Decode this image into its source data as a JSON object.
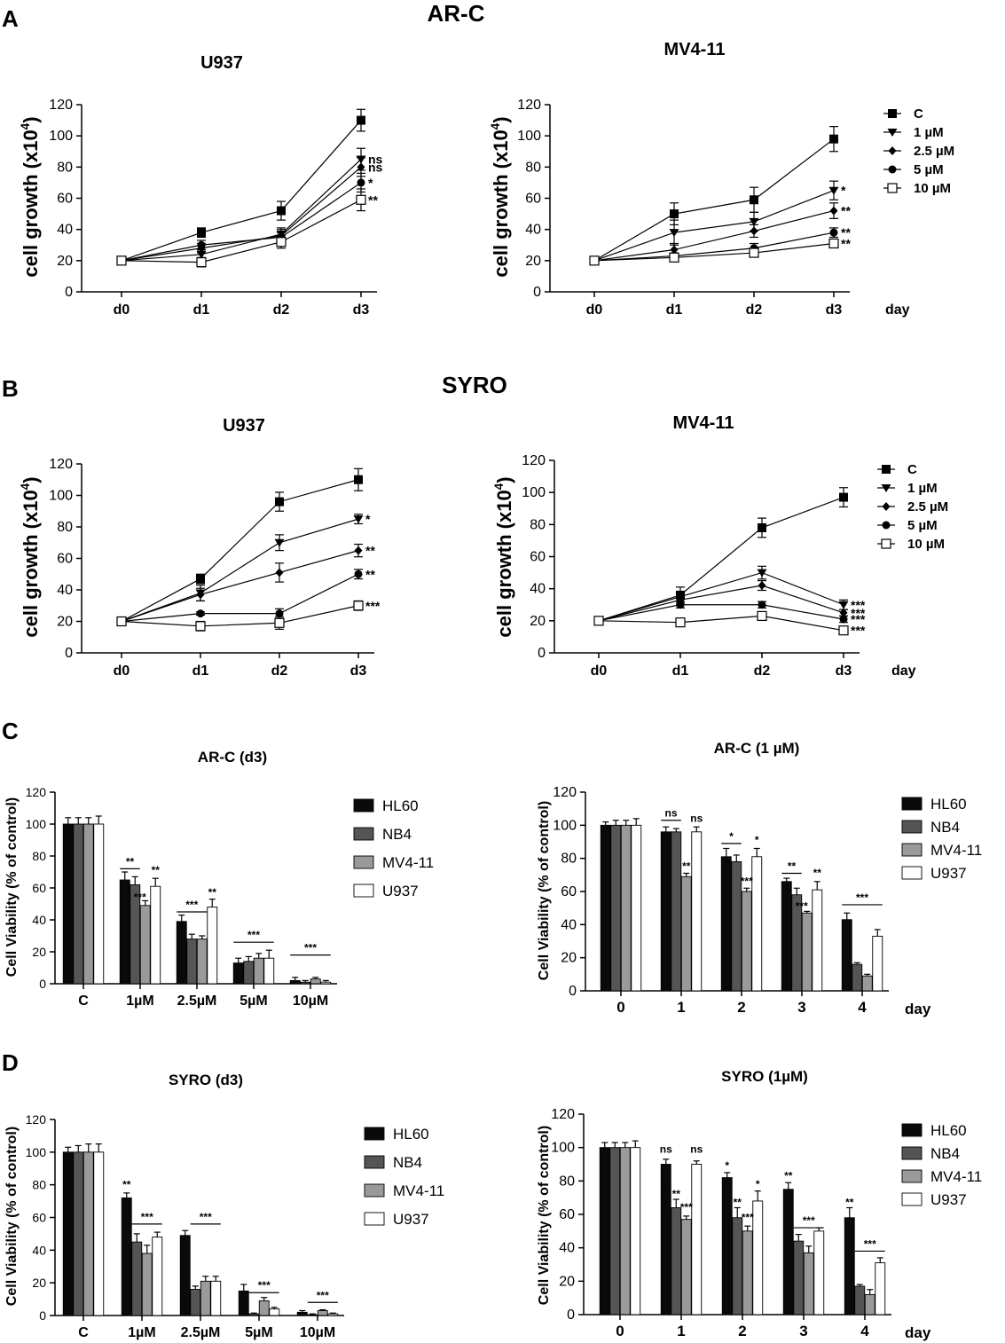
{
  "panels": {
    "A": {
      "letter": "A",
      "heading": "AR-C"
    },
    "B": {
      "letter": "B",
      "heading": "SYRO"
    },
    "C": {
      "letter": "C"
    },
    "D": {
      "letter": "D"
    }
  },
  "colors": {
    "HL60": "#0a0a0a",
    "NB4": "#555555",
    "MV4-11": "#9a9a9a",
    "U937": "#ffffff"
  },
  "chart_data": [
    {
      "id": "A-U937",
      "panel": "A",
      "type": "line",
      "title": "U937",
      "ylabel": "cell growth (x10",
      "ylabel_sup": "4",
      "ylabel_end": ")",
      "xlabel": "",
      "ylim": [
        0,
        120
      ],
      "yticks": [
        0,
        20,
        40,
        60,
        80,
        100,
        120
      ],
      "categories": [
        "d0",
        "d1",
        "d2",
        "d3"
      ],
      "series": [
        {
          "name": "C",
          "marker": "square",
          "values": [
            20,
            38,
            52,
            110
          ],
          "err": [
            1,
            3,
            6,
            7
          ],
          "sig": ""
        },
        {
          "name": "1 µM",
          "marker": "triangle",
          "values": [
            20,
            24,
            37,
            85
          ],
          "err": [
            1,
            3,
            4,
            7
          ],
          "sig": "ns"
        },
        {
          "name": "2.5 µM",
          "marker": "diamond",
          "values": [
            20,
            28,
            36,
            80
          ],
          "err": [
            1,
            3,
            4,
            6
          ],
          "sig": "ns"
        },
        {
          "name": "5 µM",
          "marker": "circle",
          "values": [
            20,
            30,
            35,
            70
          ],
          "err": [
            1,
            3,
            3,
            6
          ],
          "sig": "*"
        },
        {
          "name": "10 µM",
          "marker": "open-square",
          "values": [
            20,
            19,
            32,
            59
          ],
          "err": [
            1,
            3,
            4,
            7
          ],
          "sig": "**"
        }
      ]
    },
    {
      "id": "A-MV411",
      "panel": "A",
      "type": "line",
      "title": "MV4-11",
      "ylabel": "cell growth (x10",
      "ylabel_sup": "4",
      "ylabel_end": ")",
      "xlabel": "day",
      "ylim": [
        0,
        120
      ],
      "yticks": [
        0,
        20,
        40,
        60,
        80,
        100,
        120
      ],
      "categories": [
        "d0",
        "d1",
        "d2",
        "d3"
      ],
      "legend": [
        "C",
        "1 µM",
        "2.5 µM",
        "5 µM",
        "10 µM"
      ],
      "series": [
        {
          "name": "C",
          "marker": "square",
          "values": [
            20,
            50,
            59,
            98
          ],
          "err": [
            1,
            7,
            8,
            8
          ],
          "sig": ""
        },
        {
          "name": "1 µM",
          "marker": "triangle",
          "values": [
            20,
            38,
            45,
            65
          ],
          "err": [
            1,
            8,
            6,
            6
          ],
          "sig": "*"
        },
        {
          "name": "2.5 µM",
          "marker": "diamond",
          "values": [
            20,
            27,
            39,
            52
          ],
          "err": [
            1,
            4,
            4,
            5
          ],
          "sig": "**"
        },
        {
          "name": "5 µM",
          "marker": "circle",
          "values": [
            20,
            23,
            28,
            38
          ],
          "err": [
            1,
            2,
            3,
            3
          ],
          "sig": "**"
        },
        {
          "name": "10 µM",
          "marker": "open-square",
          "values": [
            20,
            22,
            25,
            31
          ],
          "err": [
            1,
            2,
            2,
            2
          ],
          "sig": "**"
        }
      ]
    },
    {
      "id": "B-U937",
      "panel": "B",
      "type": "line",
      "title": "U937",
      "ylabel": "cell growth (x10",
      "ylabel_sup": "4",
      "ylabel_end": ")",
      "xlabel": "",
      "ylim": [
        0,
        120
      ],
      "yticks": [
        0,
        20,
        40,
        60,
        80,
        100,
        120
      ],
      "categories": [
        "d0",
        "d1",
        "d2",
        "d3"
      ],
      "series": [
        {
          "name": "C",
          "marker": "square",
          "values": [
            20,
            47,
            96,
            110
          ],
          "err": [
            1,
            3,
            6,
            7
          ],
          "sig": ""
        },
        {
          "name": "1 µM",
          "marker": "triangle",
          "values": [
            20,
            38,
            70,
            85
          ],
          "err": [
            1,
            5,
            5,
            3
          ],
          "sig": "*"
        },
        {
          "name": "2.5 µM",
          "marker": "diamond",
          "values": [
            20,
            37,
            51,
            65
          ],
          "err": [
            1,
            4,
            6,
            4
          ],
          "sig": "**"
        },
        {
          "name": "5 µM",
          "marker": "circle",
          "values": [
            20,
            25,
            25,
            50
          ],
          "err": [
            1,
            1,
            3,
            3
          ],
          "sig": "**"
        },
        {
          "name": "10 µM",
          "marker": "open-square",
          "values": [
            20,
            17,
            19,
            30
          ],
          "err": [
            1,
            3,
            4,
            3
          ],
          "sig": "***"
        }
      ]
    },
    {
      "id": "B-MV411",
      "panel": "B",
      "type": "line",
      "title": "MV4-11",
      "ylabel": "cell growth (x10",
      "ylabel_sup": "4",
      "ylabel_end": ")",
      "xlabel": "day",
      "ylim": [
        0,
        120
      ],
      "yticks": [
        0,
        20,
        40,
        60,
        80,
        100,
        120
      ],
      "categories": [
        "d0",
        "d1",
        "d2",
        "d3"
      ],
      "legend": [
        "C",
        "1    µM",
        "2.5 µM",
        "5 µM",
        "10 µM"
      ],
      "series": [
        {
          "name": "C",
          "marker": "square",
          "values": [
            20,
            36,
            78,
            97
          ],
          "err": [
            1,
            5,
            6,
            6
          ],
          "sig": ""
        },
        {
          "name": "1 µM",
          "marker": "triangle",
          "values": [
            20,
            35,
            50,
            30
          ],
          "err": [
            1,
            3,
            4,
            3
          ],
          "sig": "***"
        },
        {
          "name": "2.5 µM",
          "marker": "diamond",
          "values": [
            20,
            33,
            42,
            25
          ],
          "err": [
            1,
            3,
            3,
            2
          ],
          "sig": "***"
        },
        {
          "name": "5 µM",
          "marker": "circle",
          "values": [
            20,
            30,
            30,
            21
          ],
          "err": [
            1,
            2,
            2,
            2
          ],
          "sig": "***"
        },
        {
          "name": "10 µM",
          "marker": "open-square",
          "values": [
            20,
            19,
            23,
            14
          ],
          "err": [
            1,
            1,
            2,
            2
          ],
          "sig": "***"
        }
      ]
    },
    {
      "id": "C-d3",
      "panel": "C",
      "type": "bar",
      "title": "AR-C (d3)",
      "ylabel": "Cell Viability (% of control)",
      "xlabel": "",
      "ylim": [
        0,
        120
      ],
      "yticks": [
        0,
        20,
        40,
        60,
        80,
        100,
        120
      ],
      "categories": [
        "C",
        "1µM",
        "2.5µM",
        "5µM",
        "10µM"
      ],
      "legend": [
        "HL60",
        "NB4",
        "MV4-11",
        "U937"
      ],
      "series": [
        {
          "name": "HL60",
          "values": [
            100,
            65,
            39,
            13,
            2
          ],
          "err": [
            4,
            5,
            4,
            3,
            2
          ]
        },
        {
          "name": "NB4",
          "values": [
            100,
            62,
            28,
            14,
            1
          ],
          "err": [
            4,
            5,
            3,
            3,
            1
          ]
        },
        {
          "name": "MV4-11",
          "values": [
            100,
            49,
            28,
            16,
            3
          ],
          "err": [
            4,
            3,
            2,
            3,
            1
          ]
        },
        {
          "name": "U937",
          "values": [
            100,
            61,
            48,
            16,
            1
          ],
          "err": [
            5,
            5,
            5,
            5,
            1
          ]
        }
      ],
      "annotations": [
        {
          "group": 1,
          "from": 0,
          "to": 1,
          "text": "**",
          "y": 72
        },
        {
          "group": 1,
          "bar": 2,
          "text": "***",
          "y": 52,
          "side": "left"
        },
        {
          "group": 1,
          "bar": 3,
          "text": "**",
          "y": 69
        },
        {
          "group": 2,
          "from": 0,
          "to": 2,
          "text": "***",
          "y": 45
        },
        {
          "group": 2,
          "bar": 3,
          "text": "**",
          "y": 55
        },
        {
          "group": 3,
          "from": 0,
          "to": 3,
          "text": "***",
          "y": 26
        },
        {
          "group": 4,
          "from": 0,
          "to": 3,
          "text": "***",
          "y": 18
        }
      ]
    },
    {
      "id": "C-1uM",
      "panel": "C",
      "type": "bar",
      "title": "AR-C (1 µM)",
      "ylabel": "Cell Viability (% of control)",
      "xlabel": "day",
      "ylim": [
        0,
        120
      ],
      "yticks": [
        0,
        20,
        40,
        60,
        80,
        100,
        120
      ],
      "categories": [
        "0",
        "1",
        "2",
        "3",
        "4"
      ],
      "legend": [
        "HL60",
        "NB4",
        "MV4-11",
        "U937"
      ],
      "series": [
        {
          "name": "HL60",
          "values": [
            100,
            96,
            81,
            66,
            43
          ],
          "err": [
            2,
            3,
            5,
            2,
            4
          ]
        },
        {
          "name": "NB4",
          "values": [
            100,
            96,
            78,
            58,
            16
          ],
          "err": [
            3,
            2,
            4,
            4,
            1
          ]
        },
        {
          "name": "MV4-11",
          "values": [
            100,
            69,
            60,
            47,
            9
          ],
          "err": [
            3,
            2,
            2,
            1,
            1
          ]
        },
        {
          "name": "U937",
          "values": [
            100,
            96,
            81,
            61,
            33
          ],
          "err": [
            4,
            3,
            5,
            5,
            4
          ]
        }
      ],
      "annotations": [
        {
          "group": 1,
          "from": 0,
          "to": 1,
          "text": "ns",
          "y": 103
        },
        {
          "group": 1,
          "bar": 2,
          "text": "**",
          "y": 73
        },
        {
          "group": 1,
          "bar": 3,
          "text": "ns",
          "y": 102
        },
        {
          "group": 2,
          "from": 0,
          "to": 1,
          "text": "*",
          "y": 89
        },
        {
          "group": 2,
          "bar": 2,
          "text": "***",
          "y": 64
        },
        {
          "group": 2,
          "bar": 3,
          "text": "*",
          "y": 89
        },
        {
          "group": 3,
          "from": 0,
          "to": 1,
          "text": "**",
          "y": 71
        },
        {
          "group": 3,
          "bar": 2,
          "text": "***",
          "y": 49,
          "side": "left"
        },
        {
          "group": 3,
          "bar": 3,
          "text": "**",
          "y": 69
        },
        {
          "group": 4,
          "from": 0,
          "to": 3,
          "text": "***",
          "y": 52
        }
      ]
    },
    {
      "id": "D-d3",
      "panel": "D",
      "type": "bar",
      "title": "SYRO (d3)",
      "ylabel": "Cell Viability (% of control)",
      "xlabel": "",
      "ylim": [
        0,
        120
      ],
      "yticks": [
        0,
        20,
        40,
        60,
        80,
        100,
        120
      ],
      "categories": [
        "C",
        "1µM",
        "2.5µM",
        "5µM",
        "10µM"
      ],
      "legend": [
        "HL60",
        "NB4",
        "MV4-11",
        "U937"
      ],
      "series": [
        {
          "name": "HL60",
          "values": [
            100,
            72,
            49,
            15,
            2
          ],
          "err": [
            3,
            3,
            3,
            4,
            1
          ]
        },
        {
          "name": "NB4",
          "values": [
            100,
            45,
            16,
            1,
            0.5
          ],
          "err": [
            4,
            5,
            2,
            0.5,
            0.5
          ]
        },
        {
          "name": "MV4-11",
          "values": [
            100,
            38,
            21,
            9,
            3
          ],
          "err": [
            5,
            5,
            3,
            2,
            0.5
          ]
        },
        {
          "name": "U937",
          "values": [
            100,
            48,
            21,
            4,
            1
          ],
          "err": [
            5,
            3,
            3,
            1,
            0.5
          ]
        }
      ],
      "annotations": [
        {
          "group": 1,
          "bar": 0,
          "text": "**",
          "y": 78
        },
        {
          "group": 1,
          "from": 1,
          "to": 3,
          "text": "***",
          "y": 56
        },
        {
          "group": 2,
          "from": 1,
          "to": 3,
          "text": "***",
          "y": 56
        },
        {
          "group": 3,
          "from": 1,
          "to": 3,
          "text": "***",
          "y": 14
        },
        {
          "group": 4,
          "from": 1,
          "to": 3,
          "text": "***",
          "y": 8
        }
      ]
    },
    {
      "id": "D-1uM",
      "panel": "D",
      "type": "bar",
      "title": "SYRO (1µM)",
      "ylabel": "Cell Viability (% of control)",
      "xlabel": "day",
      "ylim": [
        0,
        120
      ],
      "yticks": [
        0,
        20,
        40,
        60,
        80,
        100,
        120
      ],
      "categories": [
        "0",
        "1",
        "2",
        "3",
        "4"
      ],
      "legend": [
        "HL60",
        "NB4",
        "MV4-11",
        "U937"
      ],
      "series": [
        {
          "name": "HL60",
          "values": [
            100,
            90,
            82,
            75,
            58
          ],
          "err": [
            3,
            3,
            3,
            4,
            6
          ]
        },
        {
          "name": "NB4",
          "values": [
            100,
            64,
            58,
            44,
            17
          ],
          "err": [
            3,
            5,
            6,
            4,
            1
          ]
        },
        {
          "name": "MV4-11",
          "values": [
            100,
            57,
            50,
            37,
            12
          ],
          "err": [
            3,
            2,
            3,
            4,
            3
          ]
        },
        {
          "name": "U937",
          "values": [
            100,
            90,
            68,
            50,
            31
          ],
          "err": [
            4,
            2,
            6,
            2,
            3
          ]
        }
      ],
      "annotations": [
        {
          "group": 1,
          "bar": 0,
          "text": "ns",
          "y": 97
        },
        {
          "group": 1,
          "bar": 1,
          "text": "**",
          "y": 70
        },
        {
          "group": 1,
          "bar": 2,
          "text": "***",
          "y": 62
        },
        {
          "group": 1,
          "bar": 3,
          "text": "ns",
          "y": 97
        },
        {
          "group": 2,
          "bar": 0,
          "text": "*",
          "y": 87
        },
        {
          "group": 2,
          "bar": 1,
          "text": "**",
          "y": 65
        },
        {
          "group": 2,
          "bar": 2,
          "text": "***",
          "y": 56
        },
        {
          "group": 2,
          "bar": 3,
          "text": "*",
          "y": 76
        },
        {
          "group": 3,
          "bar": 0,
          "text": "**",
          "y": 81
        },
        {
          "group": 3,
          "from": 1,
          "to": 3,
          "text": "***",
          "y": 52
        },
        {
          "group": 4,
          "bar": 0,
          "text": "**",
          "y": 65
        },
        {
          "group": 4,
          "from": 1,
          "to": 3,
          "text": "***",
          "y": 38
        }
      ]
    }
  ]
}
